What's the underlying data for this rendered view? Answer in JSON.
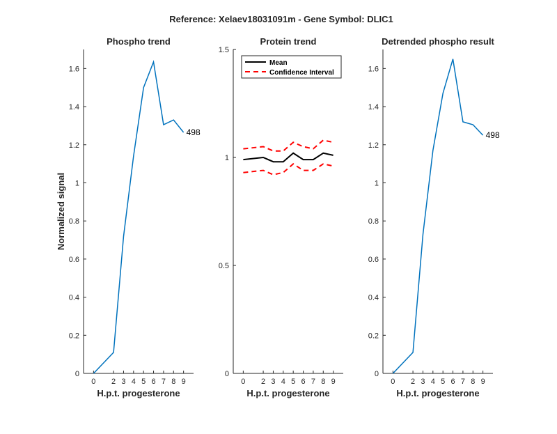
{
  "figure": {
    "title": "Reference:  Xelaev18031091m - Gene Symbol:  DLIC1"
  },
  "chart_data": [
    {
      "type": "line",
      "title": "Phospho trend",
      "xlabel": "H.p.t. progesterone",
      "ylabel": "Normalized signal",
      "x": [
        0,
        2,
        3,
        4,
        5,
        6,
        7,
        8,
        9
      ],
      "xticks": [
        "0",
        "2",
        "3",
        "4",
        "5",
        "6",
        "7",
        "8",
        "9"
      ],
      "ylim": [
        0,
        1.7
      ],
      "yticks": [
        "0",
        "0.2",
        "0.4",
        "0.6",
        "0.8",
        "1",
        "1.2",
        "1.4",
        "1.6"
      ],
      "ytick_values": [
        0,
        0.2,
        0.4,
        0.6,
        0.8,
        1,
        1.2,
        1.4,
        1.6
      ],
      "series": [
        {
          "values": [
            0.0,
            0.11,
            0.72,
            1.14,
            1.5,
            1.635,
            1.305,
            1.33,
            1.265
          ],
          "color": "#0072BD",
          "style": "solid"
        }
      ],
      "annotation": {
        "text": "498"
      }
    },
    {
      "type": "line",
      "title": "Protein trend",
      "xlabel": "H.p.t. progesterone",
      "ylabel": "",
      "x": [
        0,
        2,
        3,
        4,
        5,
        6,
        7,
        8,
        9
      ],
      "xticks": [
        "0",
        "2",
        "3",
        "4",
        "5",
        "6",
        "7",
        "8",
        "9"
      ],
      "ylim": [
        0,
        1.5
      ],
      "yticks": [
        "0",
        "0.5",
        "1",
        "1.5"
      ],
      "ytick_values": [
        0,
        0.5,
        1,
        1.5
      ],
      "series": [
        {
          "name": "Mean",
          "values": [
            0.99,
            1.0,
            0.98,
            0.98,
            1.02,
            0.99,
            0.99,
            1.02,
            1.01
          ],
          "color": "#000000",
          "style": "solid"
        },
        {
          "name": "Confidence Interval",
          "values": [
            1.04,
            1.05,
            1.03,
            1.03,
            1.07,
            1.05,
            1.04,
            1.08,
            1.07
          ],
          "color": "#FF0000",
          "style": "dashed"
        },
        {
          "values": [
            0.93,
            0.94,
            0.92,
            0.93,
            0.97,
            0.94,
            0.94,
            0.97,
            0.96
          ],
          "color": "#FF0000",
          "style": "dashed"
        }
      ],
      "legend": {
        "position": "top-right",
        "entries": [
          "Mean",
          "Confidence Interval"
        ]
      }
    },
    {
      "type": "line",
      "title": "Detrended phospho result",
      "xlabel": "H.p.t. progesterone",
      "ylabel": "",
      "x": [
        0,
        2,
        3,
        4,
        5,
        6,
        7,
        8,
        9
      ],
      "xticks": [
        "0",
        "2",
        "3",
        "4",
        "5",
        "6",
        "7",
        "8",
        "9"
      ],
      "ylim": [
        0,
        1.7
      ],
      "yticks": [
        "0",
        "0.2",
        "0.4",
        "0.6",
        "0.8",
        "1",
        "1.2",
        "1.4",
        "1.6"
      ],
      "ytick_values": [
        0,
        0.2,
        0.4,
        0.6,
        0.8,
        1,
        1.2,
        1.4,
        1.6
      ],
      "series": [
        {
          "values": [
            0.0,
            0.11,
            0.73,
            1.17,
            1.47,
            1.65,
            1.32,
            1.305,
            1.25
          ],
          "color": "#0072BD",
          "style": "solid"
        }
      ],
      "annotation": {
        "text": "498"
      }
    }
  ]
}
